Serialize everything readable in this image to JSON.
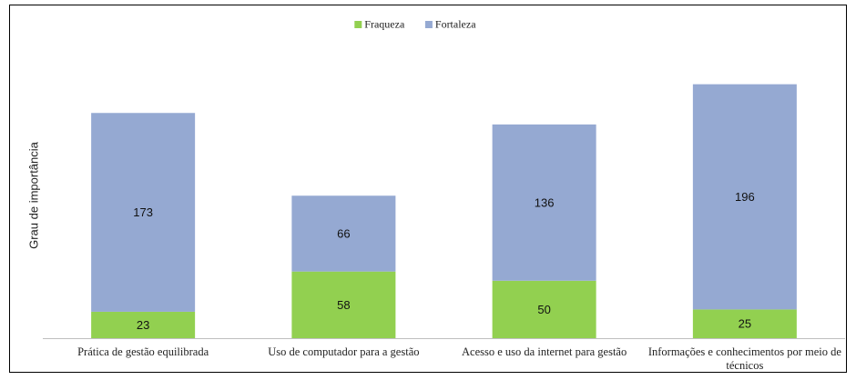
{
  "chart_data": {
    "type": "stacked_bar",
    "categories": [
      "Prática de gestão equilibrada",
      "Uso de computador para a gestão",
      "Acesso e uso da internet para gestão",
      "Informações e conhecimentos por meio de técnicos"
    ],
    "series": [
      {
        "name": "Fraqueza",
        "color": "#92d050",
        "values": [
          23,
          58,
          50,
          25
        ]
      },
      {
        "name": "Fortaleza",
        "color": "#95a9d2",
        "values": [
          173,
          66,
          136,
          196
        ]
      }
    ],
    "ylabel": "Grau de importância",
    "ylim": [
      0,
      250
    ],
    "legend": "top"
  }
}
